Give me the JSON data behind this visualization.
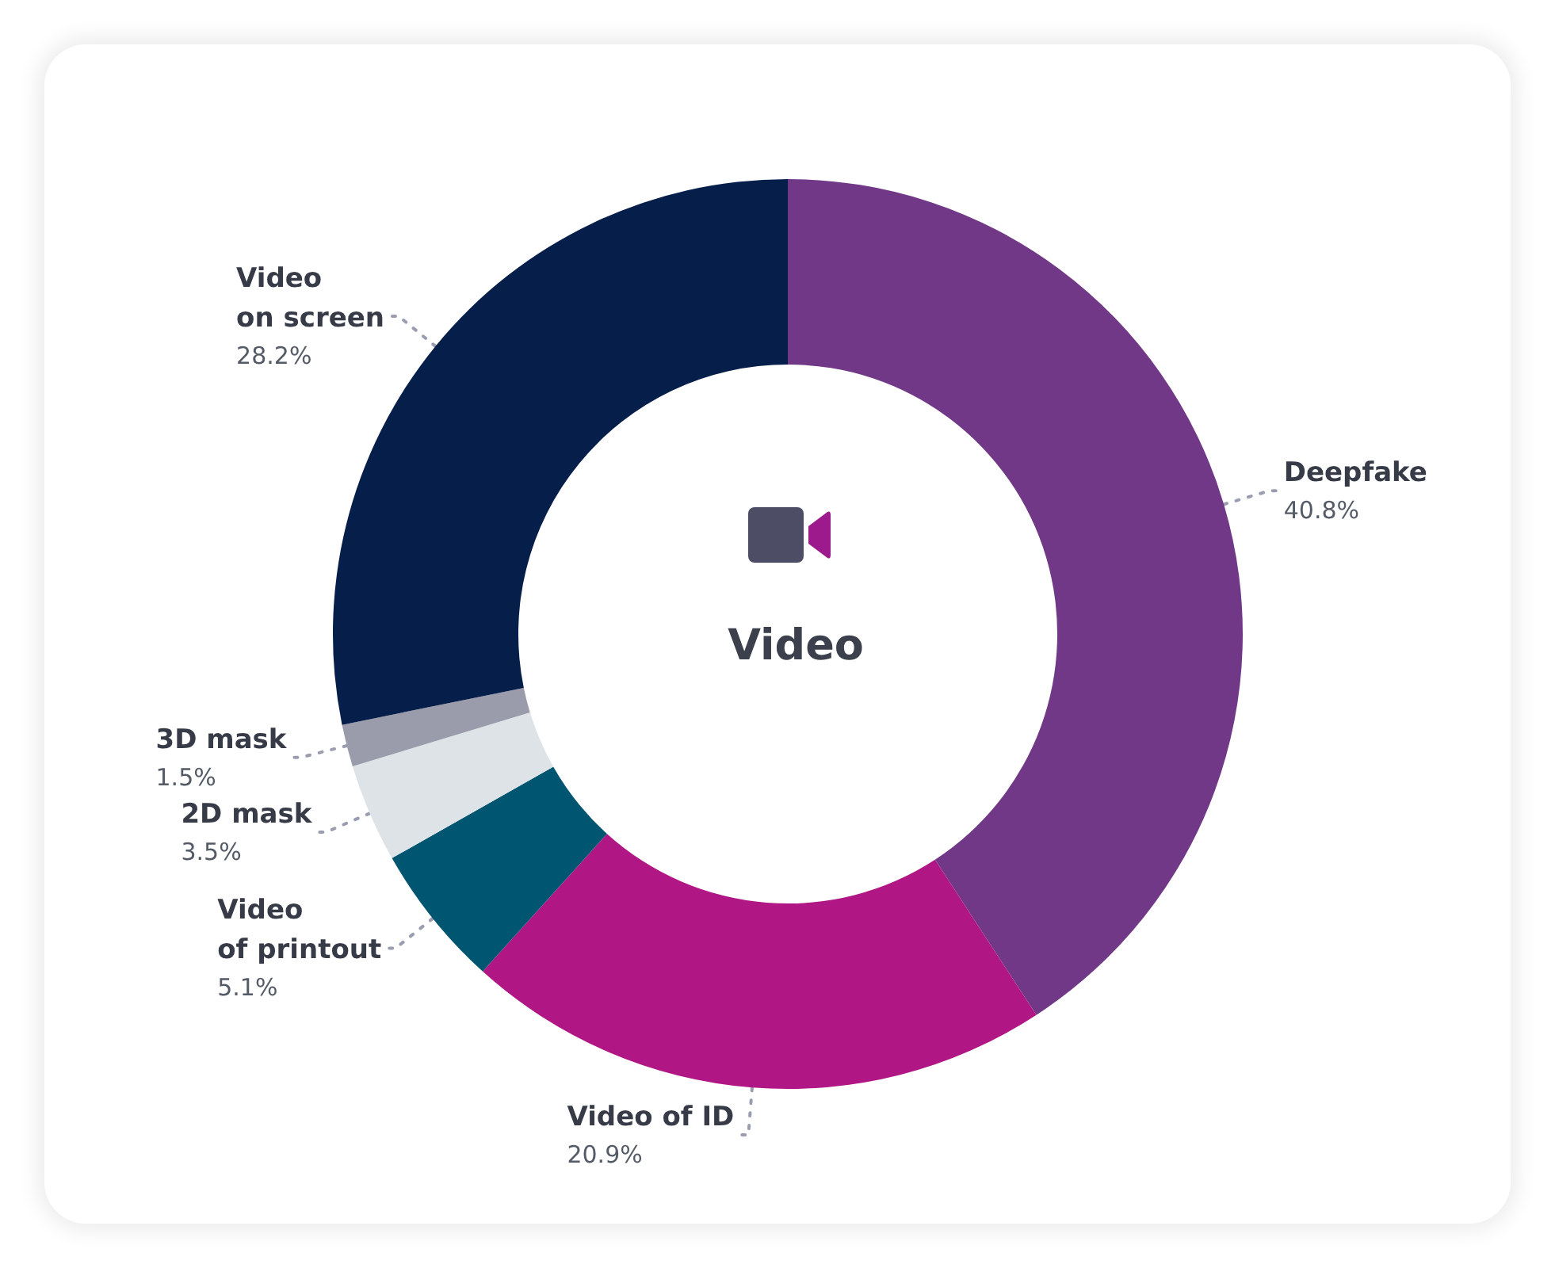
{
  "chart_data": {
    "type": "donut",
    "title": "Video",
    "categories": [
      "Deepfake",
      "Video of ID",
      "Video of printout",
      "2D mask",
      "3D mask",
      "Video on screen"
    ],
    "values": [
      40.8,
      20.9,
      5.1,
      3.5,
      1.5,
      28.2
    ],
    "value_labels": [
      "40.8%",
      "20.9%",
      "5.1%",
      "3.5%",
      "1.5%",
      "28.2%"
    ],
    "colors": [
      "#713887",
      "#b01784",
      "#005670",
      "#dde3e6",
      "#9a9bab",
      "#061e4a"
    ],
    "legend": false
  }
}
